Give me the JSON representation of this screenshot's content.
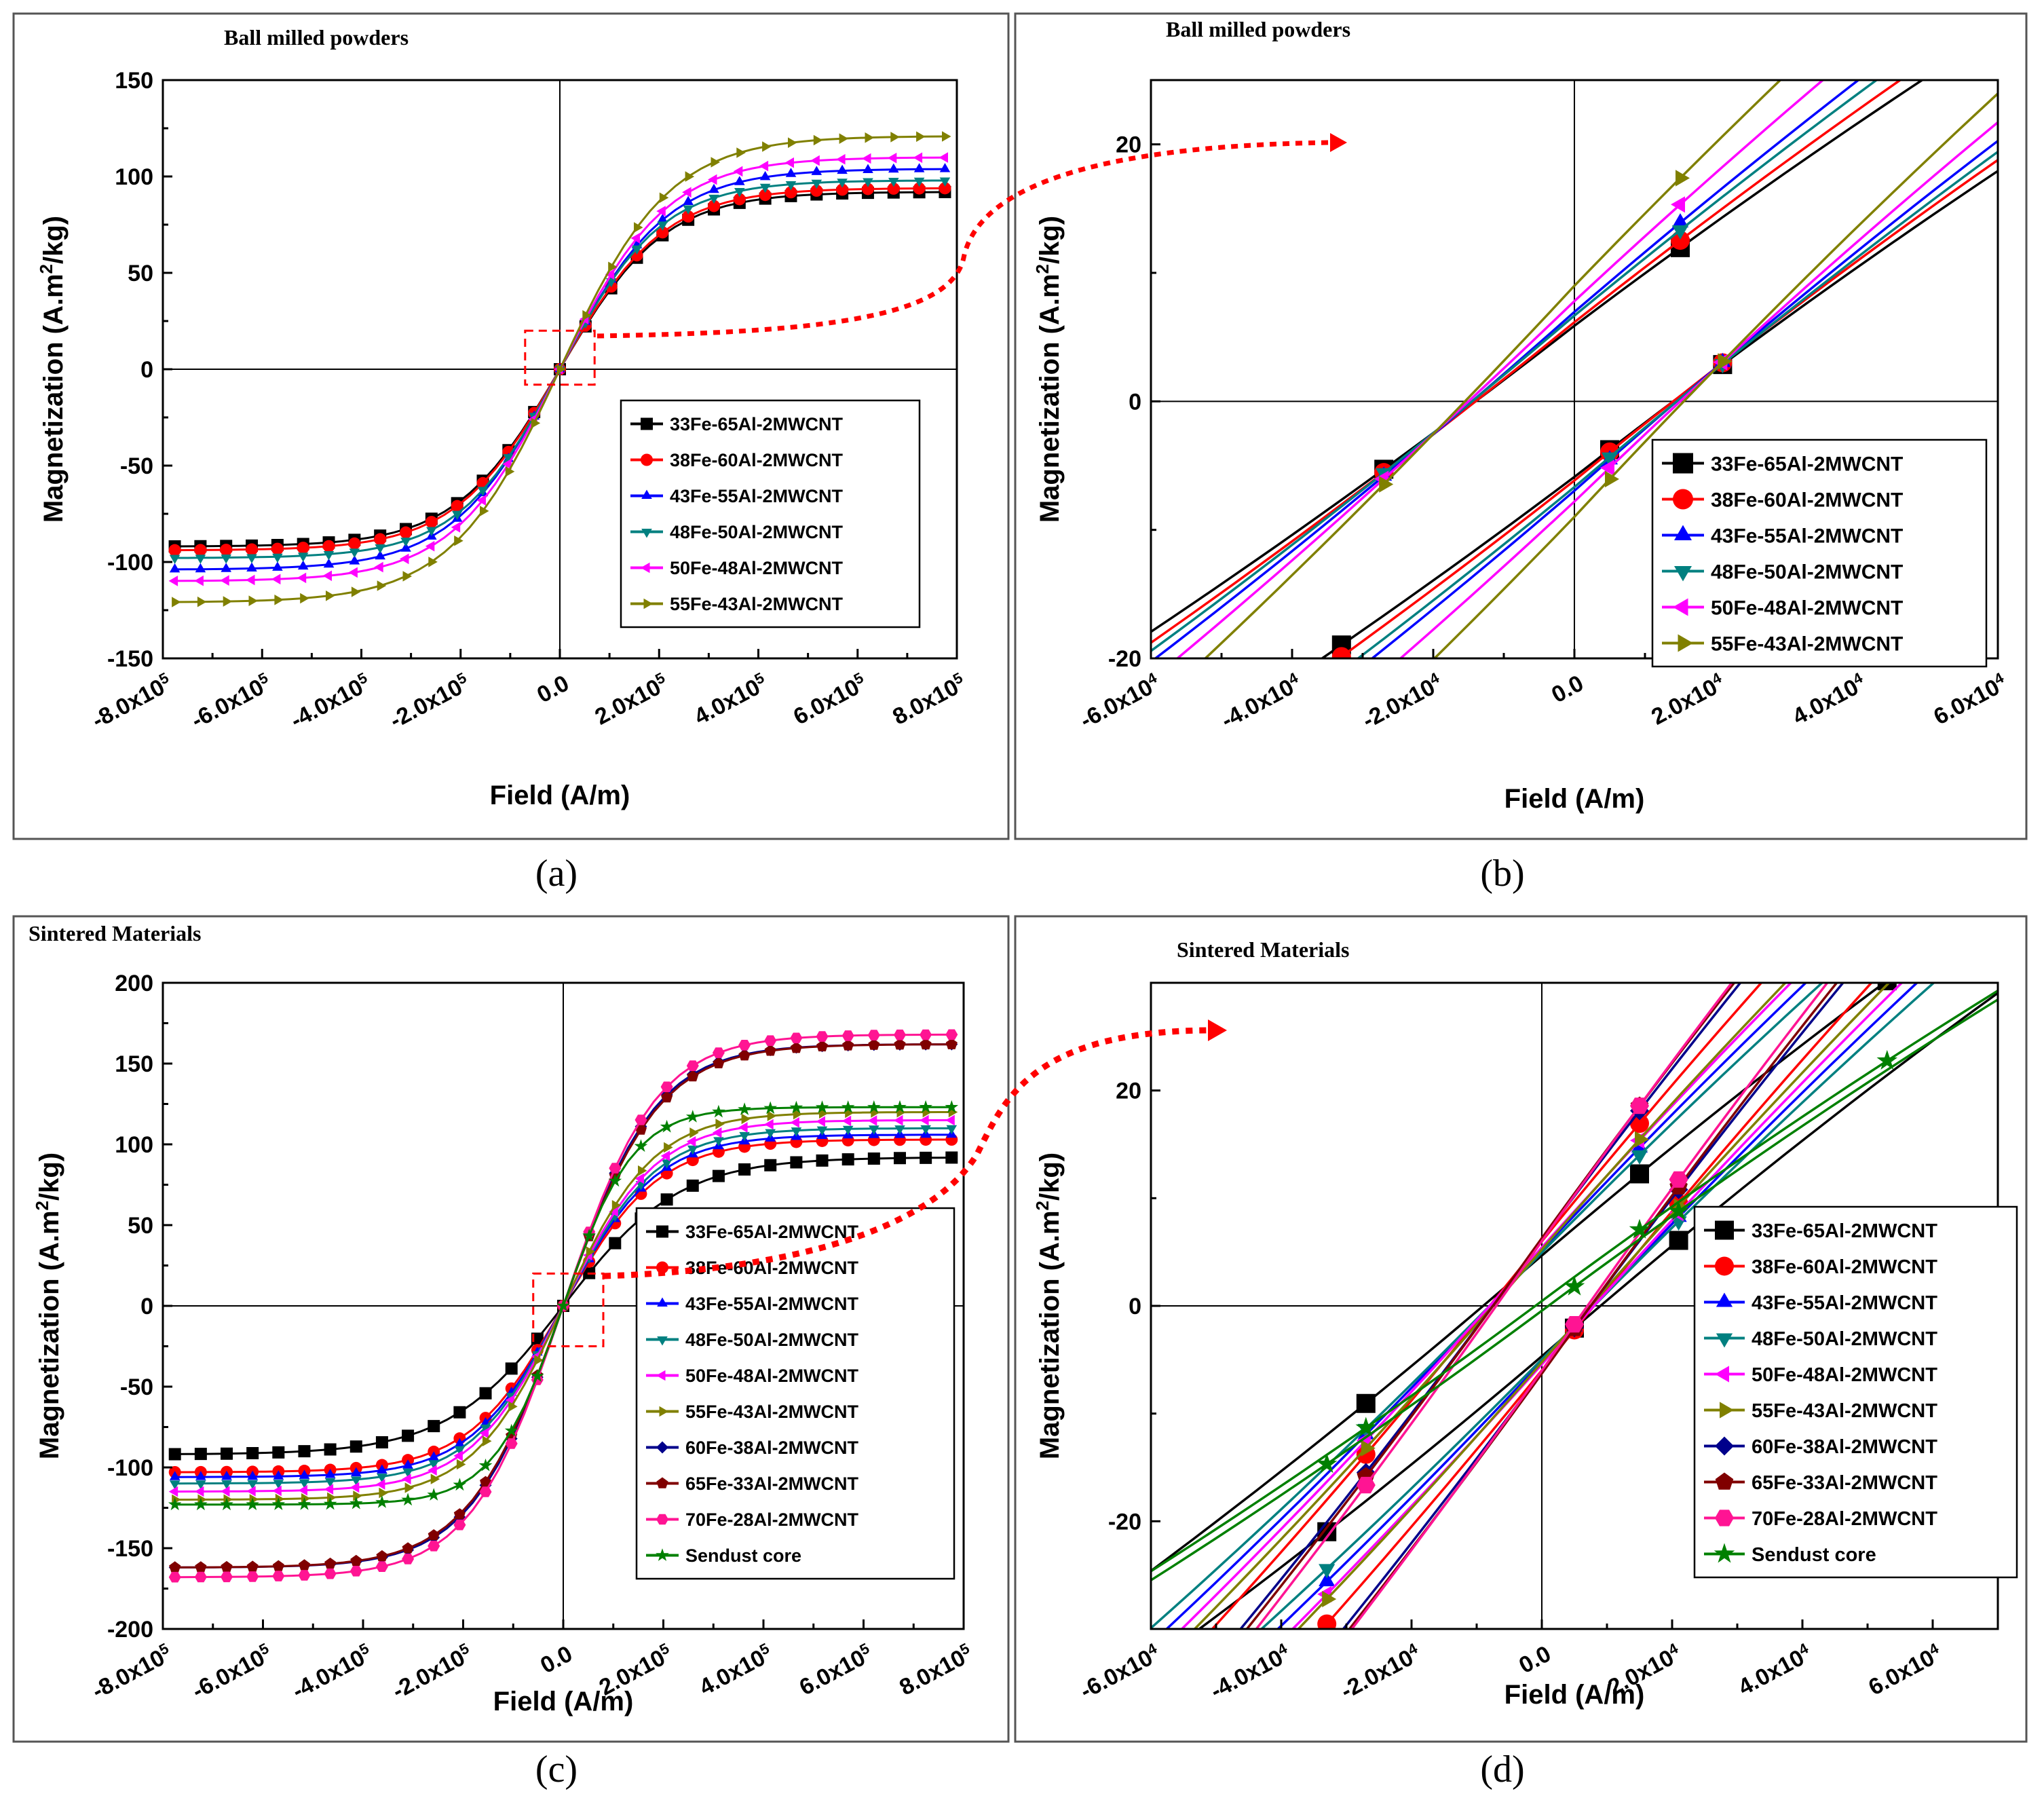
{
  "colors": {
    "c33": "#000000",
    "c38": "#ff0000",
    "c43": "#0000ff",
    "c48": "#008080",
    "c50": "#ff00ff",
    "c55": "#808000",
    "c60": "#00008b",
    "c65": "#800000",
    "c70": "#ff1493",
    "sendust": "#008000",
    "arrow": "#ff0000",
    "zoombox": "#ff0000"
  },
  "chart_data": [
    {
      "id": "a",
      "type": "line",
      "caption": "(a)",
      "title": "Ball milled powders",
      "xlabel": "Field (A/m)",
      "ylabel": "Magnetization (A.m2/kg)",
      "xlim": [
        -800000,
        800000
      ],
      "ylim": [
        -150,
        150
      ],
      "x_ticks": [
        -800000,
        -600000,
        -400000,
        -200000,
        0,
        200000,
        400000,
        600000,
        800000
      ],
      "x_tick_labels": [
        "-8.0x10^5",
        "-6.0x10^5",
        "-4.0x10^5",
        "-2.0x10^5",
        "0.0",
        "2.0x10^5",
        "4.0x10^5",
        "6.0x10^5",
        "8.0x10^5"
      ],
      "y_ticks": [
        -150,
        -100,
        -50,
        0,
        50,
        100,
        150
      ],
      "y_tick_labels": [
        "-150",
        "-100",
        "-50",
        "0",
        "50",
        "100",
        "150"
      ],
      "legend_position": "lower-right",
      "zoom_box_x": [
        -70000,
        70000
      ],
      "zoom_box_y": [
        -8,
        20
      ],
      "series": [
        {
          "name": "33Fe-65Al-2MWCNT",
          "color_key": "c33",
          "marker": "square",
          "Ms": 92,
          "Hs": 210000
        },
        {
          "name": "38Fe-60Al-2MWCNT",
          "color_key": "c38",
          "marker": "circle",
          "Ms": 94,
          "Hs": 210000
        },
        {
          "name": "43Fe-55Al-2MWCNT",
          "color_key": "c43",
          "marker": "triangle-up",
          "Ms": 104,
          "Hs": 215000
        },
        {
          "name": "48Fe-50Al-2MWCNT",
          "color_key": "c48",
          "marker": "triangle-down",
          "Ms": 98,
          "Hs": 205000
        },
        {
          "name": "50Fe-48Al-2MWCNT",
          "color_key": "c50",
          "marker": "triangle-left",
          "Ms": 110,
          "Hs": 215000
        },
        {
          "name": "55Fe-43Al-2MWCNT",
          "color_key": "c55",
          "marker": "triangle-right",
          "Ms": 121,
          "Hs": 220000
        }
      ]
    },
    {
      "id": "b",
      "type": "line",
      "caption": "(b)",
      "title": "Ball milled powders",
      "xlabel": "Field (A/m)",
      "ylabel": "Magnetization (A.m2/kg)",
      "xlim": [
        -60000,
        60000
      ],
      "ylim": [
        -20,
        25
      ],
      "x_ticks": [
        -60000,
        -40000,
        -20000,
        0,
        20000,
        40000,
        60000
      ],
      "x_tick_labels": [
        "-6.0x10^4",
        "-4.0x10^4",
        "-2.0x10^4",
        "0.0",
        "2.0x10^4",
        "4.0x10^4",
        "6.0x10^4"
      ],
      "y_ticks": [
        -20,
        0,
        20
      ],
      "y_tick_labels": [
        "-20",
        "0",
        "20"
      ],
      "legend_position": "lower-right",
      "series": [
        {
          "name": "33Fe-65Al-2MWCNT",
          "color_key": "c33",
          "marker": "square",
          "Hc": 14000,
          "slope": 0.00042
        },
        {
          "name": "38Fe-60Al-2MWCNT",
          "color_key": "c38",
          "marker": "circle",
          "Hc": 14000,
          "slope": 0.00044
        },
        {
          "name": "43Fe-55Al-2MWCNT",
          "color_key": "c43",
          "marker": "triangle-up",
          "Hc": 14500,
          "slope": 0.00048
        },
        {
          "name": "48Fe-50Al-2MWCNT",
          "color_key": "c48",
          "marker": "triangle-down",
          "Hc": 14500,
          "slope": 0.00046
        },
        {
          "name": "50Fe-48Al-2MWCNT",
          "color_key": "c50",
          "marker": "triangle-left",
          "Hc": 15000,
          "slope": 0.00052
        },
        {
          "name": "55Fe-43Al-2MWCNT",
          "color_key": "c55",
          "marker": "triangle-right",
          "Hc": 15500,
          "slope": 0.00058
        }
      ]
    },
    {
      "id": "c",
      "type": "line",
      "caption": "(c)",
      "title": "Sintered Materials",
      "xlabel": "Field (A/m)",
      "ylabel": "Magnetization (A.m2/kg)",
      "xlim": [
        -800000,
        800000
      ],
      "ylim": [
        -200,
        200
      ],
      "x_ticks": [
        -800000,
        -600000,
        -400000,
        -200000,
        0,
        200000,
        400000,
        600000,
        800000
      ],
      "x_tick_labels": [
        "-8.0x10^5",
        "-6.0x10^5",
        "-4.0x10^5",
        "-2.0x10^5",
        "0.0",
        "2.0x10^5",
        "4.0x10^5",
        "6.0x10^5",
        "8.0x10^5"
      ],
      "y_ticks": [
        -200,
        -150,
        -100,
        -50,
        0,
        50,
        100,
        150,
        200
      ],
      "y_tick_labels": [
        "-200",
        "-150",
        "-100",
        "-50",
        "0",
        "50",
        "100",
        "150",
        "200"
      ],
      "legend_position": "lower-right",
      "zoom_box_x": [
        -60000,
        80000
      ],
      "zoom_box_y": [
        -25,
        20
      ],
      "series": [
        {
          "name": "33Fe-65Al-2MWCNT",
          "color_key": "c33",
          "marker": "square",
          "Ms": 92,
          "Hs": 230000
        },
        {
          "name": "38Fe-60Al-2MWCNT",
          "color_key": "c38",
          "marker": "circle",
          "Ms": 103,
          "Hs": 190000
        },
        {
          "name": "43Fe-55Al-2MWCNT",
          "color_key": "c43",
          "marker": "triangle-up",
          "Ms": 106,
          "Hs": 185000
        },
        {
          "name": "48Fe-50Al-2MWCNT",
          "color_key": "c48",
          "marker": "triangle-down",
          "Ms": 110,
          "Hs": 185000
        },
        {
          "name": "50Fe-48Al-2MWCNT",
          "color_key": "c50",
          "marker": "triangle-left",
          "Ms": 115,
          "Hs": 185000
        },
        {
          "name": "55Fe-43Al-2MWCNT",
          "color_key": "c55",
          "marker": "triangle-right",
          "Ms": 120,
          "Hs": 180000
        },
        {
          "name": "60Fe-38Al-2MWCNT",
          "color_key": "c60",
          "marker": "diamond",
          "Ms": 162,
          "Hs": 185000
        },
        {
          "name": "65Fe-33Al-2MWCNT",
          "color_key": "c65",
          "marker": "pentagon",
          "Ms": 162,
          "Hs": 190000
        },
        {
          "name": "70Fe-28Al-2MWCNT",
          "color_key": "c70",
          "marker": "hexagon",
          "Ms": 168,
          "Hs": 185000
        },
        {
          "name": "Sendust core",
          "color_key": "sendust",
          "marker": "star",
          "Ms": 123,
          "Hs": 140000
        }
      ]
    },
    {
      "id": "d",
      "type": "line",
      "caption": "(d)",
      "title": "Sintered Materials",
      "xlabel": "Field (A/m)",
      "ylabel": "Magnetization (A.m2/kg)",
      "xlim": [
        -60000,
        70000
      ],
      "ylim": [
        -30,
        30
      ],
      "x_ticks": [
        -60000,
        -40000,
        -20000,
        0,
        20000,
        40000,
        60000
      ],
      "x_tick_labels": [
        "-6.0x10^4",
        "-4.0x10^4",
        "-2.0x10^4",
        "0.0",
        "2.0x10^4",
        "4.0x10^4",
        "6.0x10^4"
      ],
      "y_ticks": [
        -20,
        0,
        20
      ],
      "y_tick_labels": [
        "-20",
        "0",
        "20"
      ],
      "legend_position": "lower-right",
      "series": [
        {
          "name": "33Fe-65Al-2MWCNT",
          "color_key": "c33",
          "marker": "square",
          "Hc": 9000,
          "slope": 0.00052
        },
        {
          "name": "38Fe-60Al-2MWCNT",
          "color_key": "c38",
          "marker": "circle",
          "Hc": 8000,
          "slope": 0.00075
        },
        {
          "name": "43Fe-55Al-2MWCNT",
          "color_key": "c43",
          "marker": "triangle-up",
          "Hc": 8000,
          "slope": 0.00065
        },
        {
          "name": "48Fe-50Al-2MWCNT",
          "color_key": "c48",
          "marker": "triangle-down",
          "Hc": 8000,
          "slope": 0.00062
        },
        {
          "name": "50Fe-48Al-2MWCNT",
          "color_key": "c50",
          "marker": "triangle-left",
          "Hc": 8000,
          "slope": 0.00068
        },
        {
          "name": "55Fe-43Al-2MWCNT",
          "color_key": "c55",
          "marker": "triangle-right",
          "Hc": 7500,
          "slope": 0.0007
        },
        {
          "name": "60Fe-38Al-2MWCNT",
          "color_key": "c60",
          "marker": "diamond",
          "Hc": 7500,
          "slope": 0.00082
        },
        {
          "name": "65Fe-33Al-2MWCNT",
          "color_key": "c65",
          "marker": "pentagon",
          "Hc": 7500,
          "slope": 0.00084
        },
        {
          "name": "70Fe-28Al-2MWCNT",
          "color_key": "c70",
          "marker": "hexagon",
          "Hc": 7000,
          "slope": 0.00086
        },
        {
          "name": "Sendust core",
          "color_key": "sendust",
          "marker": "star",
          "Hc": 1000,
          "slope": 0.00045
        }
      ]
    }
  ]
}
